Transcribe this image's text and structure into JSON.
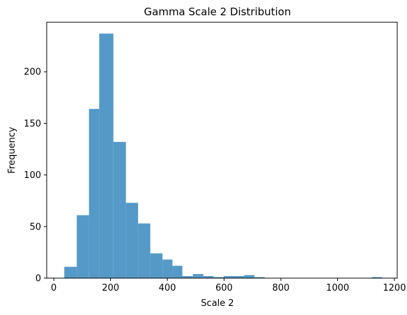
{
  "chart_data": {
    "type": "bar",
    "title": "Gamma Scale 2 Distribution",
    "xlabel": "Scale 2",
    "ylabel": "Frequency",
    "bar_color": "#5499c7",
    "grid": false,
    "xlim": [
      -25,
      1210
    ],
    "ylim": [
      0,
      248
    ],
    "xticks": [
      0,
      200,
      400,
      600,
      800,
      1000,
      1200
    ],
    "yticks": [
      0,
      50,
      100,
      150,
      200
    ],
    "bins": [
      {
        "x0": 37,
        "x1": 81,
        "count": 11
      },
      {
        "x0": 81,
        "x1": 124,
        "count": 61
      },
      {
        "x0": 124,
        "x1": 160,
        "count": 164
      },
      {
        "x0": 160,
        "x1": 210,
        "count": 237
      },
      {
        "x0": 210,
        "x1": 254,
        "count": 132
      },
      {
        "x0": 254,
        "x1": 297,
        "count": 73
      },
      {
        "x0": 297,
        "x1": 340,
        "count": 53
      },
      {
        "x0": 340,
        "x1": 383,
        "count": 24
      },
      {
        "x0": 383,
        "x1": 418,
        "count": 18
      },
      {
        "x0": 418,
        "x1": 453,
        "count": 12
      },
      {
        "x0": 453,
        "x1": 490,
        "count": 2
      },
      {
        "x0": 490,
        "x1": 527,
        "count": 4
      },
      {
        "x0": 527,
        "x1": 563,
        "count": 2
      },
      {
        "x0": 563,
        "x1": 599,
        "count": 1
      },
      {
        "x0": 599,
        "x1": 635,
        "count": 2
      },
      {
        "x0": 635,
        "x1": 671,
        "count": 2
      },
      {
        "x0": 671,
        "x1": 707,
        "count": 3
      },
      {
        "x0": 707,
        "x1": 743,
        "count": 1
      },
      {
        "x0": 1120,
        "x1": 1157,
        "count": 1
      }
    ]
  }
}
